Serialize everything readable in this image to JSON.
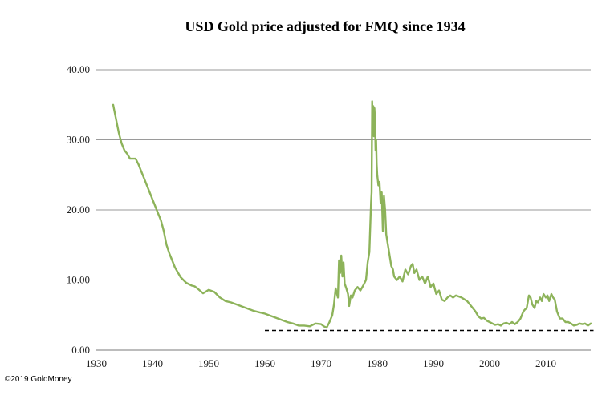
{
  "chart_data": {
    "type": "line",
    "title": "USD Gold price adjusted for FMQ since 1934",
    "xlabel": "",
    "ylabel": "",
    "xlim": [
      1930,
      2018
    ],
    "ylim": [
      0,
      40
    ],
    "x_ticks": [
      "1930",
      "1940",
      "1950",
      "1960",
      "1970",
      "1980",
      "1990",
      "2000",
      "2010"
    ],
    "y_ticks": [
      "0.00",
      "10.00",
      "20.00",
      "30.00",
      "40.00"
    ],
    "grid": "horizontal",
    "legend": "none",
    "colors": {
      "series": "#8db35a",
      "reference": "#000000"
    },
    "series": [
      {
        "x": [
          1933.0,
          1933.5,
          1934.0,
          1934.5,
          1935.0,
          1935.5,
          1936.0,
          1937.0,
          1937.5,
          1938.0,
          1938.5,
          1939.0,
          1940.0,
          1941.0,
          1941.5,
          1942.0,
          1942.5,
          1943.0,
          1943.5,
          1944.0,
          1945.0,
          1946.0,
          1947.0,
          1947.5,
          1948.0,
          1949.0,
          1950.0,
          1951.0,
          1952.0,
          1953.0,
          1954.0,
          1955.0,
          1956.0,
          1957.0,
          1958.0,
          1959.0,
          1960.0,
          1961.0,
          1962.0,
          1963.0,
          1964.0,
          1965.0,
          1966.0,
          1967.0,
          1968.0,
          1969.0,
          1970.0,
          1970.5,
          1971.0,
          1971.5,
          1972.0,
          1972.3,
          1972.6,
          1973.0,
          1973.2,
          1973.4,
          1973.6,
          1973.8,
          1974.0,
          1974.2,
          1974.5,
          1974.8,
          1975.0,
          1975.3,
          1975.6,
          1976.0,
          1976.5,
          1977.0,
          1977.5,
          1978.0,
          1978.3,
          1978.6,
          1978.9,
          1979.0,
          1979.1,
          1979.2,
          1979.3,
          1979.4,
          1979.5,
          1979.6,
          1979.7,
          1979.8,
          1979.9,
          1980.0,
          1980.2,
          1980.4,
          1980.6,
          1980.8,
          1981.0,
          1981.2,
          1981.4,
          1981.6,
          1981.8,
          1982.0,
          1982.2,
          1982.5,
          1982.8,
          1983.0,
          1983.5,
          1984.0,
          1984.5,
          1985.0,
          1985.5,
          1986.0,
          1986.3,
          1986.6,
          1987.0,
          1987.5,
          1988.0,
          1988.5,
          1989.0,
          1989.5,
          1990.0,
          1990.5,
          1991.0,
          1991.5,
          1992.0,
          1992.5,
          1993.0,
          1993.5,
          1994.0,
          1995.0,
          1996.0,
          1996.5,
          1997.0,
          1997.5,
          1998.0,
          1998.5,
          1999.0,
          1999.5,
          2000.0,
          2000.5,
          2001.0,
          2001.5,
          2002.0,
          2002.5,
          2003.0,
          2003.5,
          2004.0,
          2004.5,
          2005.0,
          2005.5,
          2006.0,
          2006.3,
          2006.6,
          2007.0,
          2007.3,
          2007.6,
          2008.0,
          2008.3,
          2008.6,
          2009.0,
          2009.3,
          2009.6,
          2010.0,
          2010.3,
          2010.6,
          2011.0,
          2011.3,
          2011.6,
          2012.0,
          2012.5,
          2013.0,
          2013.5,
          2014.0,
          2014.5,
          2015.0,
          2015.5,
          2016.0,
          2016.5,
          2017.0,
          2017.5,
          2018.0
        ],
        "values": [
          35.0,
          33.0,
          31.0,
          29.5,
          28.5,
          28.0,
          27.3,
          27.3,
          26.5,
          25.5,
          24.5,
          23.5,
          21.5,
          19.5,
          18.5,
          17.0,
          15.0,
          13.8,
          12.8,
          11.8,
          10.4,
          9.6,
          9.2,
          9.1,
          8.8,
          8.1,
          8.6,
          8.3,
          7.5,
          7.0,
          6.8,
          6.5,
          6.2,
          5.9,
          5.6,
          5.4,
          5.2,
          4.9,
          4.6,
          4.3,
          4.0,
          3.8,
          3.5,
          3.5,
          3.4,
          3.8,
          3.7,
          3.4,
          3.2,
          4.0,
          5.0,
          6.5,
          8.8,
          7.5,
          12.8,
          11.0,
          13.5,
          10.5,
          12.5,
          9.5,
          8.8,
          8.0,
          6.3,
          7.8,
          7.5,
          8.5,
          9.0,
          8.5,
          9.2,
          10.0,
          12.5,
          14.0,
          21.0,
          22.5,
          35.5,
          32.5,
          34.8,
          30.5,
          34.5,
          33.0,
          28.5,
          30.0,
          26.5,
          25.0,
          23.5,
          24.0,
          21.0,
          22.5,
          17.0,
          22.0,
          20.0,
          16.5,
          15.5,
          14.5,
          13.5,
          12.0,
          11.5,
          10.5,
          10.0,
          10.5,
          9.8,
          11.5,
          10.8,
          12.0,
          12.3,
          11.0,
          11.5,
          10.0,
          10.5,
          9.5,
          10.5,
          9.0,
          9.5,
          8.0,
          8.5,
          7.2,
          7.0,
          7.5,
          7.8,
          7.5,
          7.8,
          7.5,
          7.0,
          6.5,
          6.0,
          5.5,
          4.8,
          4.5,
          4.6,
          4.2,
          4.0,
          3.8,
          3.6,
          3.7,
          3.5,
          3.8,
          3.9,
          3.7,
          4.0,
          3.7,
          4.0,
          4.5,
          5.5,
          5.8,
          6.0,
          7.8,
          7.5,
          6.5,
          6.0,
          7.0,
          6.8,
          7.5,
          7.0,
          8.0,
          7.5,
          7.8,
          7.0,
          8.0,
          7.5,
          7.2,
          5.5,
          4.5,
          4.5,
          4.0,
          4.0,
          3.8,
          3.5,
          3.6,
          3.8,
          3.7,
          3.8,
          3.5,
          3.8
        ]
      }
    ],
    "reference_line": {
      "y": 2.8,
      "x_start": 1960,
      "x_end": 2018.5,
      "style": "dashed"
    }
  },
  "footer": {
    "credit": "©2019 GoldMoney"
  }
}
